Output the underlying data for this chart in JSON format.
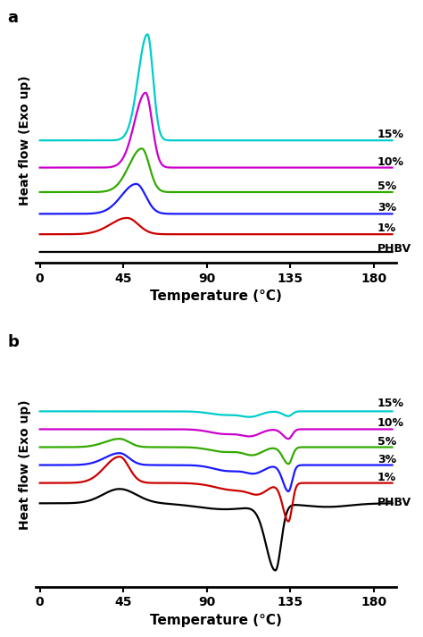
{
  "xlim": [
    0,
    190
  ],
  "xticks": [
    0,
    45,
    90,
    135,
    180
  ],
  "xlabel": "Temperature (°C)",
  "ylabel": "Heat flow (Exo up)",
  "panel_a_label": "a",
  "panel_b_label": "b",
  "colors": {
    "PHBV": "#000000",
    "1%": "#cc0000",
    "3%": "#1a1aff",
    "5%": "#33aa00",
    "10%": "#cc00cc",
    "15%": "#00cccc"
  },
  "series_order": [
    "PHBV",
    "1%",
    "3%",
    "5%",
    "10%",
    "15%"
  ],
  "offsets_a": {
    "PHBV": 0.0,
    "1%": 0.13,
    "3%": 0.28,
    "5%": 0.44,
    "10%": 0.62,
    "15%": 0.82
  },
  "offsets_b": {
    "PHBV": 0.0,
    "1%": 0.17,
    "3%": 0.32,
    "5%": 0.47,
    "10%": 0.62,
    "15%": 0.77
  },
  "background_color": "#f0f0f0",
  "figsize": [
    4.74,
    7.13
  ],
  "dpi": 100
}
